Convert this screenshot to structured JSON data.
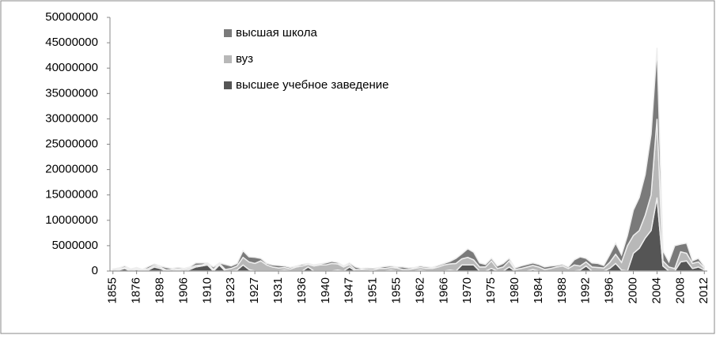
{
  "chart_data": {
    "type": "stacked_area",
    "categories": [
      "1855",
      null,
      null,
      null,
      "1876",
      null,
      null,
      null,
      "1898",
      null,
      null,
      null,
      "1906",
      null,
      null,
      null,
      "1910",
      null,
      null,
      null,
      "1923",
      null,
      null,
      null,
      "1927",
      null,
      null,
      null,
      "1931",
      null,
      null,
      null,
      "1936",
      null,
      null,
      null,
      "1940",
      null,
      null,
      null,
      "1947",
      null,
      null,
      null,
      "1951",
      null,
      null,
      null,
      "1955",
      null,
      null,
      null,
      "1962",
      null,
      null,
      null,
      "1966",
      null,
      null,
      null,
      "1970",
      null,
      null,
      null,
      "1975",
      null,
      null,
      null,
      "1980",
      null,
      null,
      null,
      "1984",
      null,
      null,
      null,
      "1988",
      null,
      null,
      null,
      "1992",
      null,
      null,
      null,
      "1996",
      null,
      null,
      null,
      "2000",
      null,
      null,
      null,
      "2004",
      null,
      null,
      null,
      "2008",
      null,
      null,
      null,
      "2012"
    ],
    "series": [
      {
        "name": "высшее учебное заведение",
        "color": "#555555",
        "values": [
          0,
          200000,
          500000,
          0,
          300000,
          0,
          200000,
          800000,
          500000,
          0,
          0,
          200000,
          0,
          300000,
          800000,
          1000000,
          1200000,
          0,
          1200000,
          0,
          0,
          200000,
          1200000,
          300000,
          0,
          0,
          0,
          0,
          0,
          200000,
          0,
          0,
          0,
          800000,
          0,
          0,
          0,
          0,
          200000,
          0,
          800000,
          0,
          0,
          0,
          0,
          0,
          0,
          200000,
          0,
          0,
          0,
          0,
          200000,
          0,
          0,
          0,
          0,
          200000,
          0,
          1200000,
          1200000,
          1200000,
          0,
          0,
          500000,
          0,
          0,
          800000,
          0,
          0,
          0,
          300000,
          0,
          0,
          0,
          0,
          0,
          0,
          0,
          200000,
          1000000,
          0,
          0,
          0,
          500000,
          1500000,
          200000,
          0,
          3500000,
          4500000,
          6500000,
          8000000,
          14500000,
          1000000,
          0,
          0,
          1800000,
          2000000,
          500000,
          800000,
          200000
        ]
      },
      {
        "name": "вуз",
        "color": "#b8b8b8",
        "values": [
          300000,
          200000,
          200000,
          300000,
          200000,
          200000,
          300000,
          300000,
          300000,
          200000,
          300000,
          200000,
          300000,
          300000,
          300000,
          200000,
          300000,
          300000,
          300000,
          300000,
          500000,
          800000,
          1500000,
          1500000,
          1500000,
          2000000,
          1200000,
          800000,
          600000,
          500000,
          400000,
          800000,
          1000000,
          500000,
          1000000,
          1200000,
          1200000,
          1500000,
          1200000,
          800000,
          500000,
          300000,
          300000,
          300000,
          200000,
          500000,
          500000,
          500000,
          600000,
          300000,
          300000,
          500000,
          500000,
          500000,
          500000,
          800000,
          1200000,
          1200000,
          1500000,
          1200000,
          1500000,
          1000000,
          800000,
          800000,
          1500000,
          500000,
          800000,
          1200000,
          300000,
          500000,
          800000,
          800000,
          800000,
          300000,
          500000,
          800000,
          1000000,
          500000,
          1200000,
          800000,
          800000,
          800000,
          700000,
          600000,
          1200000,
          1800000,
          1500000,
          5000000,
          3500000,
          3500000,
          4500000,
          7000000,
          15500000,
          1000000,
          800000,
          500000,
          2000000,
          1500000,
          1000000,
          1000000,
          400000
        ]
      },
      {
        "name": "высшая школа",
        "color": "#7a7a7a",
        "values": [
          100000,
          200000,
          300000,
          100000,
          200000,
          100000,
          400000,
          300000,
          200000,
          500000,
          200000,
          300000,
          200000,
          200000,
          500000,
          400000,
          100000,
          500000,
          100000,
          1000000,
          500000,
          500000,
          1300000,
          1000000,
          1200000,
          500000,
          300000,
          400000,
          500000,
          300000,
          300000,
          200000,
          300000,
          200000,
          200000,
          200000,
          400000,
          400000,
          300000,
          200000,
          300000,
          500000,
          200000,
          300000,
          300000,
          200000,
          400000,
          300000,
          200000,
          500000,
          300000,
          200000,
          300000,
          300000,
          200000,
          300000,
          300000,
          500000,
          1000000,
          1000000,
          1700000,
          1500000,
          800000,
          500000,
          500000,
          500000,
          700000,
          500000,
          300000,
          500000,
          500000,
          500000,
          500000,
          500000,
          500000,
          300000,
          300000,
          300000,
          1000000,
          1800000,
          700000,
          800000,
          800000,
          500000,
          1500000,
          2200000,
          1500000,
          2000000,
          5000000,
          6500000,
          8000000,
          12000000,
          14000000,
          2000000,
          1000000,
          4500000,
          1500000,
          2000000,
          500000,
          700000,
          300000
        ]
      }
    ],
    "ylim": [
      0,
      50000000
    ],
    "yticks": [
      0,
      5000000,
      10000000,
      15000000,
      20000000,
      25000000,
      30000000,
      35000000,
      40000000,
      45000000,
      50000000
    ],
    "grid": false,
    "legend": "top-center"
  }
}
